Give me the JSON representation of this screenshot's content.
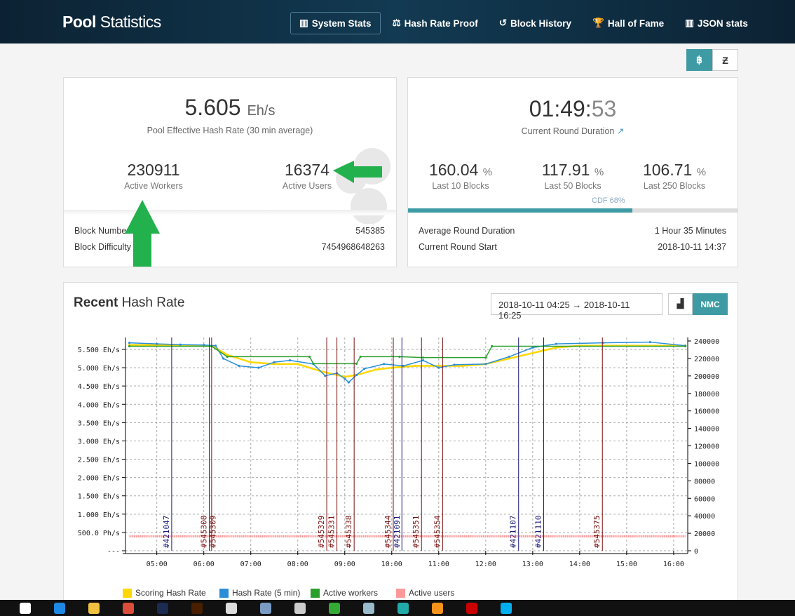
{
  "header": {
    "brand_bold": "Pool",
    "brand_rest": " Statistics",
    "nav": [
      {
        "label": "System Stats",
        "icon": "bar-chart-icon",
        "active": true
      },
      {
        "label": "Hash Rate Proof",
        "icon": "balance-scale-icon"
      },
      {
        "label": "Block History",
        "icon": "history-icon"
      },
      {
        "label": "Hall of Fame",
        "icon": "trophy-icon"
      },
      {
        "label": "JSON stats",
        "icon": "bar-chart-icon"
      }
    ]
  },
  "currency": {
    "options": [
      "฿",
      "Ƶ"
    ],
    "selected": "฿"
  },
  "hashrate_card": {
    "value": "5.605",
    "unit": "Eh/s",
    "caption": "Pool Effective Hash Rate (30 min average)",
    "workers": "230911",
    "workers_label": "Active Workers",
    "users": "16374",
    "users_label": "Active Users",
    "rows": [
      {
        "label": "Block Number",
        "value": "545385"
      },
      {
        "label": "Block Difficulty",
        "value": "7454968648263"
      }
    ]
  },
  "round_card": {
    "time_main": "01:49:",
    "time_sec": "53",
    "caption": "Current Round Duration",
    "luck": [
      {
        "value": "160.04",
        "unit": "%",
        "label": "Last 10 Blocks"
      },
      {
        "value": "117.91",
        "unit": "%",
        "label": "Last 50 Blocks"
      },
      {
        "value": "106.71",
        "unit": "%",
        "label": "Last 250 Blocks"
      }
    ],
    "cdf_label": "CDF 68%",
    "cdf_percent": 68,
    "rows": [
      {
        "label": "Average Round Duration",
        "value": "1 Hour 35 Minutes"
      },
      {
        "label": "Current Round Start",
        "value": "2018-10-11 14:37"
      }
    ]
  },
  "chart_card": {
    "title_bold": "Recent",
    "title_rest": " Hash Rate",
    "range": "2018-10-11 04:25 → 2018-10-11 16:25",
    "nmc_label": "NMC"
  },
  "chart_data": {
    "type": "line",
    "x_ticks": [
      "05:00",
      "06:00",
      "07:00",
      "08:00",
      "09:00",
      "10:00",
      "11:00",
      "12:00",
      "13:00",
      "14:00",
      "15:00",
      "16:00"
    ],
    "xlim": [
      "04:20",
      "16:18"
    ],
    "left_ticks": [
      "---",
      "500.0 Ph/s",
      "1.000 Eh/s",
      "1.500 Eh/s",
      "2.000 Eh/s",
      "2.500 Eh/s",
      "3.000 Eh/s",
      "3.500 Eh/s",
      "4.000 Eh/s",
      "4.500 Eh/s",
      "5.000 Eh/s",
      "5.500 Eh/s"
    ],
    "left_ylim_ehs": [
      0,
      5.5
    ],
    "right_ticks": [
      0,
      20000,
      40000,
      60000,
      80000,
      100000,
      120000,
      140000,
      160000,
      180000,
      200000,
      220000,
      240000
    ],
    "grid": true,
    "legend_position": "bottom-left",
    "series": [
      {
        "name": "Scoring Hash Rate",
        "axis": "left",
        "color": "#ffd700",
        "points": [
          [
            "04:25",
            5.62
          ],
          [
            "05:00",
            5.62
          ],
          [
            "05:30",
            5.6
          ],
          [
            "06:00",
            5.6
          ],
          [
            "06:10",
            5.6
          ],
          [
            "06:30",
            5.35
          ],
          [
            "07:00",
            5.15
          ],
          [
            "07:30",
            5.1
          ],
          [
            "08:00",
            5.1
          ],
          [
            "08:30",
            4.9
          ],
          [
            "09:00",
            4.75
          ],
          [
            "09:15",
            4.8
          ],
          [
            "09:40",
            4.95
          ],
          [
            "10:00",
            5.0
          ],
          [
            "10:30",
            5.05
          ],
          [
            "11:00",
            5.05
          ],
          [
            "11:30",
            5.05
          ],
          [
            "12:00",
            5.1
          ],
          [
            "12:30",
            5.25
          ],
          [
            "13:00",
            5.4
          ],
          [
            "13:30",
            5.55
          ],
          [
            "14:00",
            5.6
          ],
          [
            "15:00",
            5.6
          ],
          [
            "16:15",
            5.6
          ]
        ]
      },
      {
        "name": "Hash Rate (5 min)",
        "axis": "left",
        "color": "#2b8fd8",
        "points": [
          [
            "04:25",
            5.68
          ],
          [
            "05:00",
            5.65
          ],
          [
            "05:30",
            5.63
          ],
          [
            "06:00",
            5.62
          ],
          [
            "06:15",
            5.6
          ],
          [
            "06:25",
            5.25
          ],
          [
            "06:45",
            5.05
          ],
          [
            "07:10",
            5.0
          ],
          [
            "07:30",
            5.15
          ],
          [
            "07:50",
            5.2
          ],
          [
            "08:20",
            5.1
          ],
          [
            "08:35",
            4.78
          ],
          [
            "08:50",
            4.85
          ],
          [
            "09:00",
            4.7
          ],
          [
            "09:05",
            4.6
          ],
          [
            "09:15",
            4.8
          ],
          [
            "09:25",
            4.97
          ],
          [
            "09:50",
            5.1
          ],
          [
            "10:15",
            5.05
          ],
          [
            "10:40",
            5.2
          ],
          [
            "11:00",
            5.0
          ],
          [
            "11:20",
            5.08
          ],
          [
            "12:00",
            5.1
          ],
          [
            "12:30",
            5.3
          ],
          [
            "13:00",
            5.55
          ],
          [
            "13:30",
            5.65
          ],
          [
            "14:30",
            5.68
          ],
          [
            "15:30",
            5.7
          ],
          [
            "16:15",
            5.6
          ]
        ]
      },
      {
        "name": "Active workers",
        "axis": "right",
        "color": "#2ca02c",
        "points": [
          [
            "04:25",
            234000
          ],
          [
            "06:10",
            234000
          ],
          [
            "06:30",
            222000
          ],
          [
            "08:15",
            222000
          ],
          [
            "08:20",
            214000
          ],
          [
            "09:15",
            214000
          ],
          [
            "09:20",
            222000
          ],
          [
            "10:10",
            222000
          ],
          [
            "10:40",
            221000
          ],
          [
            "12:00",
            221000
          ],
          [
            "12:08",
            234000
          ],
          [
            "16:15",
            234000
          ]
        ]
      },
      {
        "name": "Active users",
        "axis": "right",
        "color": "#ff9999",
        "points": [
          [
            "04:25",
            16500
          ],
          [
            "16:15",
            16500
          ]
        ]
      }
    ],
    "blocks": [
      {
        "label": "#421047",
        "time": "05:19",
        "chain": "NMC",
        "color": "#1a1a7a"
      },
      {
        "label": "#545308",
        "time": "06:07",
        "chain": "BTC",
        "color": "#7a1010"
      },
      {
        "label": "#545309",
        "time": "06:10",
        "chain": "BTC",
        "color": "#7a1010"
      },
      {
        "label": "#545329",
        "time": "08:37",
        "chain": "BTC",
        "color": "#7a1010"
      },
      {
        "label": "#545331",
        "time": "08:50",
        "chain": "BTC",
        "color": "#7a1010"
      },
      {
        "label": "#545338",
        "time": "09:12",
        "chain": "BTC",
        "color": "#7a1010"
      },
      {
        "label": "#545344",
        "time": "10:02",
        "chain": "BTC",
        "color": "#7a1010"
      },
      {
        "label": "#421091",
        "time": "10:13",
        "chain": "NMC",
        "color": "#1a1a7a"
      },
      {
        "label": "#545351",
        "time": "10:38",
        "chain": "BTC",
        "color": "#7a1010"
      },
      {
        "label": "#545354",
        "time": "11:05",
        "chain": "BTC",
        "color": "#7a1010"
      },
      {
        "label": "#421107",
        "time": "12:42",
        "chain": "NMC",
        "color": "#1a1a7a"
      },
      {
        "label": "#421110",
        "time": "13:14",
        "chain": "NMC",
        "color": "#1a1a7a"
      },
      {
        "label": "#545375",
        "time": "14:29",
        "chain": "BTC",
        "color": "#7a1010"
      }
    ]
  },
  "colors": {
    "accent": "#3e9aa3",
    "header": "#0c2233",
    "annotation_arrow": "#22b14c"
  },
  "taskbar": {
    "icons": [
      "task-view-icon",
      "edge-icon",
      "file-explorer-icon",
      "chrome-icon",
      "photoshop-icon",
      "illustrator-icon",
      "calculator-icon",
      "network-icon",
      "app-icon",
      "app-icon",
      "app-icon",
      "app-icon",
      "bitcoin-icon",
      "filezilla-icon",
      "skype-icon"
    ]
  }
}
